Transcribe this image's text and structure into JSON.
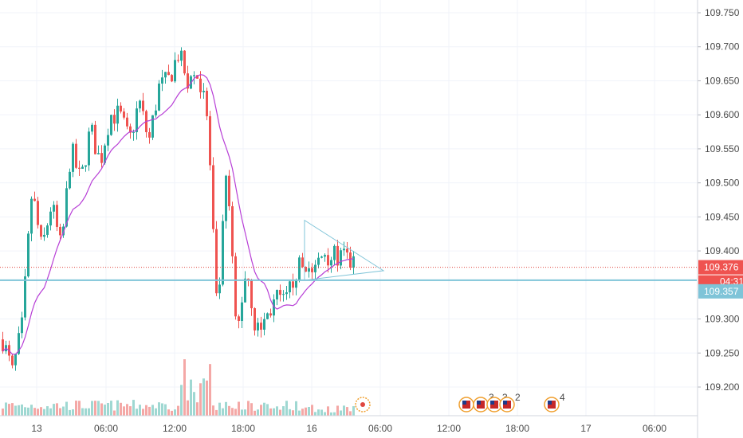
{
  "chart_data": {
    "type": "candlestick",
    "symbol_scale": "price",
    "ylim": [
      109.16,
      109.77
    ],
    "y_ticks": [
      "109.750",
      "109.700",
      "109.650",
      "109.600",
      "109.550",
      "109.500",
      "109.450",
      "109.400",
      "109.300",
      "109.250",
      "109.200"
    ],
    "x_ticks": [
      "13",
      "06:00",
      "12:00",
      "18:00",
      "16",
      "06:00",
      "12:00",
      "18:00",
      "17",
      "06:00"
    ],
    "grid": true,
    "colors": {
      "up": "#26a69a",
      "down": "#ef5350",
      "up_volume": "#9fd8d2",
      "down_volume": "#f4a8a6",
      "moving_average": "#b73ed6",
      "triangle": "#7fc4d8",
      "horizontal_line": "#7fc4d8",
      "current_price_line": "#e0463f",
      "axis_label_red": "#ef5350",
      "axis_label_blue": "#7fc4d8"
    },
    "current_price": {
      "value": 109.376,
      "label": "109.376",
      "countdown": "04:31"
    },
    "horizontal_line": {
      "value": 109.357,
      "label": "109.357"
    },
    "triangle_pattern": {
      "apex_time": "06:00",
      "upper_start": 109.445,
      "lower_start": 109.357,
      "apex_value": 109.371
    },
    "event_markers": [
      {
        "time_hint": "15:00",
        "count": "3"
      },
      {
        "time_hint": "16:00",
        "count": "3"
      },
      {
        "time_hint": "16:30",
        "count": "2"
      },
      {
        "time_hint": "20:30",
        "count": "4"
      }
    ],
    "series": [
      {
        "name": "",
        "close_path": [
          109.27,
          109.22,
          109.29,
          109.49,
          109.4,
          109.47,
          109.4,
          109.55,
          109.5,
          109.58,
          109.53,
          109.6,
          109.6,
          109.56,
          109.62,
          109.56,
          109.64,
          109.65,
          109.69,
          109.65,
          109.66,
          109.6,
          109.3,
          109.52,
          109.27,
          109.38,
          109.28,
          109.3,
          109.33,
          109.32,
          109.37,
          109.38,
          109.37,
          109.4,
          109.39,
          109.39,
          109.38
        ]
      }
    ]
  }
}
